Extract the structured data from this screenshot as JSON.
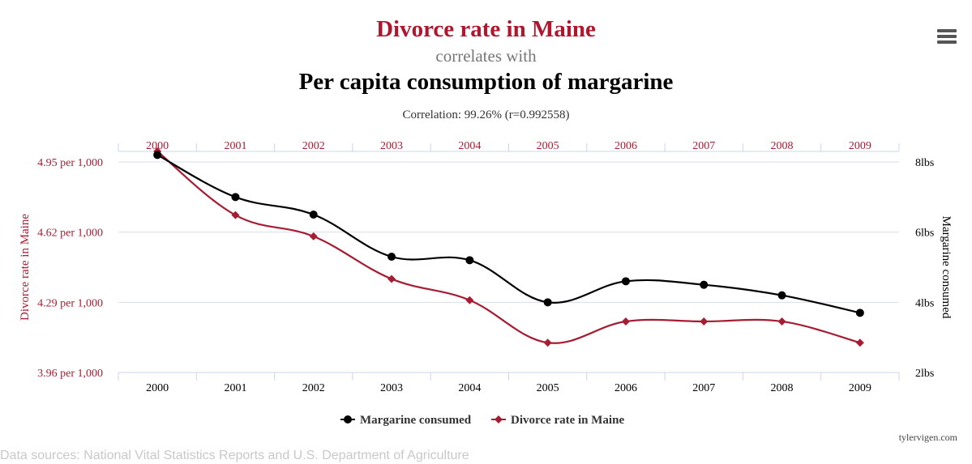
{
  "header": {
    "title": "Divorce rate in Maine",
    "connector": "correlates with",
    "subtitle": "Per capita consumption of margarine",
    "correlation": "Correlation: 99.26% (r=0.992558)"
  },
  "menu_icon": "hamburger-menu-icon",
  "footer": {
    "sources": "Data sources: National Vital Statistics Reports and U.S. Department of Agriculture",
    "credit": "tylervigen.com"
  },
  "colors": {
    "divorce": "#a61d33",
    "margarine": "#000000",
    "grid": "#d8dde6",
    "axis": "#ccd6eb"
  },
  "chart_data": {
    "type": "line",
    "categories": [
      "2000",
      "2001",
      "2002",
      "2003",
      "2004",
      "2005",
      "2006",
      "2007",
      "2008",
      "2009"
    ],
    "left_axis": {
      "label": "Divorce rate in Maine",
      "ticks": [
        "4.95 per 1,000",
        "4.62 per 1,000",
        "4.29 per 1,000",
        "3.96 per 1,000"
      ],
      "tick_values": [
        4.95,
        4.62,
        4.29,
        3.96
      ],
      "ylim": [
        3.96,
        4.95
      ]
    },
    "right_axis": {
      "label": "Margarine consumed",
      "ticks": [
        "8lbs",
        "6lbs",
        "4lbs",
        "2lbs"
      ],
      "tick_values": [
        8,
        6,
        4,
        2
      ],
      "ylim": [
        2,
        8
      ]
    },
    "series": [
      {
        "name": "Margarine consumed",
        "axis": "right",
        "marker": "circle",
        "values": [
          8.2,
          7.0,
          6.5,
          5.3,
          5.2,
          4.0,
          4.6,
          4.5,
          4.2,
          3.7
        ]
      },
      {
        "name": "Divorce rate in Maine",
        "axis": "left",
        "marker": "diamond",
        "values": [
          5.0,
          4.7,
          4.6,
          4.4,
          4.3,
          4.1,
          4.2,
          4.2,
          4.2,
          4.1
        ]
      }
    ],
    "legend_position": "bottom-center",
    "grid": true
  }
}
